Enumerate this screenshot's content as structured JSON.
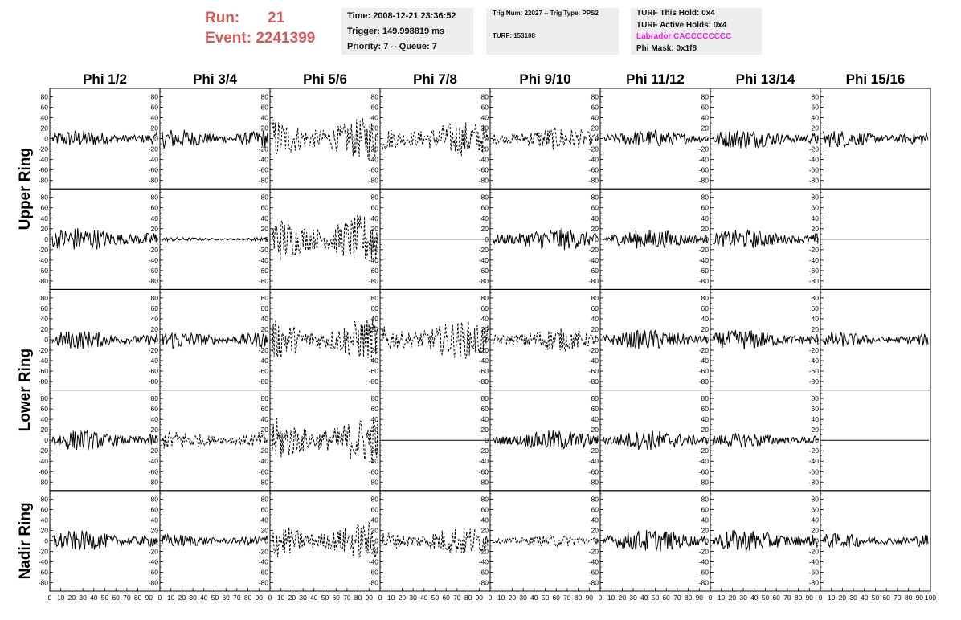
{
  "header": {
    "run_label": "Run:",
    "run_value": "21",
    "event_label": "Event:",
    "event_value": "2241399",
    "time_line": "Time: 2008-12-21 23:36:52",
    "trigger_line": "Trigger: 149.998819 ms",
    "priority_line": "Priority: 7 -- Queue: 7",
    "trig_num_line": "Trig Num: 22027 -- Trig Type: PPS2",
    "turf_line": "TURF: 153108",
    "turf_hold_line": "TURF This Hold: 0x4",
    "turf_active_line": "TURF Active Holds: 0x4",
    "labrador_line": "Labrador CACCCCCCCC",
    "phi_mask_line": "Phi Mask: 0x1f8",
    "labrador_color": "#ee22ee",
    "run_color": "#d65a5a"
  },
  "chart_data": {
    "type": "line",
    "columns": [
      "Phi 1/2",
      "Phi 3/4",
      "Phi 5/6",
      "Phi 7/8",
      "Phi 9/10",
      "Phi 11/12",
      "Phi 13/14",
      "Phi 15/16"
    ],
    "rows": [
      "Upper Ring",
      "Lower Ring",
      "Nadir Ring"
    ],
    "ylim": [
      -90,
      90
    ],
    "xlim": [
      0,
      100
    ],
    "yticks": [
      "80",
      "60",
      "40",
      "20",
      "0",
      "-20",
      "-40",
      "-60",
      "-80"
    ],
    "xticks": [
      "0",
      "10",
      "20",
      "30",
      "40",
      "50",
      "60",
      "70",
      "80",
      "90",
      "100"
    ],
    "grid": false,
    "panels": [
      [
        {
          "amp": 13,
          "style": "solid",
          "flat": false
        },
        {
          "amp": 15,
          "style": "solid",
          "flat": false
        },
        {
          "amp": 32,
          "style": "dashed",
          "flat": false
        },
        {
          "amp": 26,
          "style": "dashed",
          "flat": false
        },
        {
          "amp": 17,
          "style": "dashed",
          "flat": false
        },
        {
          "amp": 13,
          "style": "solid",
          "flat": false
        },
        {
          "amp": 15,
          "style": "solid",
          "flat": false
        },
        {
          "amp": 13,
          "style": "solid",
          "flat": false
        }
      ],
      [
        {
          "amp": 18,
          "style": "solid",
          "flat": false
        },
        {
          "amp": 3,
          "style": "solid",
          "flat": false
        },
        {
          "amp": 38,
          "style": "dashed",
          "flat": false
        },
        {
          "amp": 0,
          "style": "solid",
          "flat": true
        },
        {
          "amp": 17,
          "style": "solid",
          "flat": false
        },
        {
          "amp": 15,
          "style": "solid",
          "flat": false
        },
        {
          "amp": 14,
          "style": "solid",
          "flat": false
        },
        {
          "amp": 0,
          "style": "solid",
          "flat": true
        }
      ],
      [
        {
          "amp": 14,
          "style": "solid",
          "flat": false
        },
        {
          "amp": 14,
          "style": "solid",
          "flat": false
        },
        {
          "amp": 32,
          "style": "dashed",
          "flat": false
        },
        {
          "amp": 28,
          "style": "dashed",
          "flat": false
        },
        {
          "amp": 17,
          "style": "dashed",
          "flat": false
        },
        {
          "amp": 15,
          "style": "solid",
          "flat": false
        },
        {
          "amp": 15,
          "style": "solid",
          "flat": false
        },
        {
          "amp": 11,
          "style": "solid",
          "flat": false
        }
      ],
      [
        {
          "amp": 15,
          "style": "solid",
          "flat": false
        },
        {
          "amp": 14,
          "style": "dashed",
          "flat": false
        },
        {
          "amp": 35,
          "style": "dashed",
          "flat": false
        },
        {
          "amp": 0,
          "style": "solid",
          "flat": true
        },
        {
          "amp": 15,
          "style": "solid",
          "flat": false
        },
        {
          "amp": 15,
          "style": "solid",
          "flat": false
        },
        {
          "amp": 11,
          "style": "solid",
          "flat": false
        },
        {
          "amp": 0,
          "style": "solid",
          "flat": true
        }
      ],
      [
        {
          "amp": 15,
          "style": "solid",
          "flat": false
        },
        {
          "amp": 10,
          "style": "solid",
          "flat": false
        },
        {
          "amp": 28,
          "style": "dashed",
          "flat": false
        },
        {
          "amp": 22,
          "style": "dashed",
          "flat": false
        },
        {
          "amp": 9,
          "style": "dashed",
          "flat": false
        },
        {
          "amp": 17,
          "style": "solid",
          "flat": false
        },
        {
          "amp": 17,
          "style": "solid",
          "flat": false
        },
        {
          "amp": 11,
          "style": "solid",
          "flat": false
        }
      ]
    ]
  }
}
